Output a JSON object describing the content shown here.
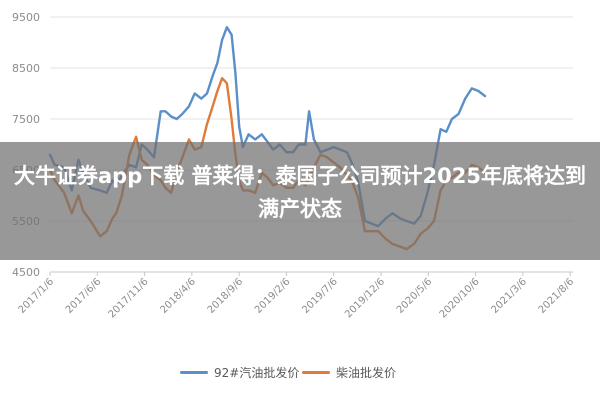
{
  "overlay": {
    "headline": "大牛证券app下载 普莱得：泰国子公司预计2025年底将达到满产状态"
  },
  "colors": {
    "gasoline": "#5b8fc9",
    "diesel": "#e07b39",
    "grid": "#e3e3e3",
    "axis_text": "#8c8c8c"
  },
  "chart_data": {
    "type": "line",
    "title": "",
    "xlabel": "",
    "ylabel": "",
    "ylim": [
      4500,
      9500
    ],
    "yticks": [
      4500,
      5500,
      6500,
      7500,
      8500,
      9500
    ],
    "x_tick_labels": [
      "2017/1/6",
      "2017/6/6",
      "2017/11/6",
      "2018/4/6",
      "2018/9/6",
      "2019/2/6",
      "2019/7/6",
      "2019/12/6",
      "2020/5/6",
      "2020/10/6",
      "2021/3/6",
      "2021/8/6"
    ],
    "x_tick_index": [
      0,
      5,
      10,
      15,
      20,
      25,
      30,
      35,
      40,
      45,
      50,
      55
    ],
    "x_index_range": [
      0,
      55.3
    ],
    "series": [
      {
        "name": "92#汽油批发价",
        "color_key": "gasoline",
        "points": [
          [
            0,
            6800
          ],
          [
            0.5,
            6600
          ],
          [
            1.5,
            6550
          ],
          [
            2.3,
            6100
          ],
          [
            3,
            6700
          ],
          [
            3.5,
            6450
          ],
          [
            4.3,
            6150
          ],
          [
            5.3,
            6100
          ],
          [
            6,
            6050
          ],
          [
            6.6,
            6300
          ],
          [
            7,
            6200
          ],
          [
            7.6,
            6400
          ],
          [
            8.4,
            6600
          ],
          [
            9.1,
            6550
          ],
          [
            9.7,
            7000
          ],
          [
            10.3,
            6900
          ],
          [
            11,
            6750
          ],
          [
            11.7,
            7650
          ],
          [
            12.2,
            7650
          ],
          [
            12.8,
            7550
          ],
          [
            13.4,
            7500
          ],
          [
            14,
            7600
          ],
          [
            14.7,
            7750
          ],
          [
            15.3,
            8000
          ],
          [
            16,
            7900
          ],
          [
            16.6,
            8000
          ],
          [
            17.2,
            8350
          ],
          [
            17.7,
            8600
          ],
          [
            18.2,
            9050
          ],
          [
            18.7,
            9300
          ],
          [
            19.2,
            9150
          ],
          [
            19.6,
            8400
          ],
          [
            20,
            7350
          ],
          [
            20.4,
            6950
          ],
          [
            21,
            7200
          ],
          [
            21.7,
            7100
          ],
          [
            22.4,
            7200
          ],
          [
            23,
            7050
          ],
          [
            23.6,
            6900
          ],
          [
            24.3,
            7000
          ],
          [
            25,
            6850
          ],
          [
            25.7,
            6850
          ],
          [
            26.3,
            7000
          ],
          [
            27,
            7000
          ],
          [
            27.4,
            7650
          ],
          [
            27.9,
            7100
          ],
          [
            28.6,
            6850
          ],
          [
            29.3,
            6900
          ],
          [
            30,
            6950
          ],
          [
            30.7,
            6900
          ],
          [
            31.4,
            6850
          ],
          [
            32,
            6600
          ],
          [
            32.6,
            6250
          ],
          [
            33.3,
            5500
          ],
          [
            34,
            5450
          ],
          [
            34.7,
            5400
          ],
          [
            35.5,
            5550
          ],
          [
            36.2,
            5650
          ],
          [
            37,
            5550
          ],
          [
            37.7,
            5500
          ],
          [
            38.5,
            5450
          ],
          [
            39.2,
            5600
          ],
          [
            39.9,
            6050
          ],
          [
            40.6,
            6600
          ],
          [
            41.3,
            7300
          ],
          [
            41.9,
            7250
          ],
          [
            42.5,
            7500
          ],
          [
            43.2,
            7600
          ],
          [
            43.9,
            7900
          ],
          [
            44.6,
            8100
          ],
          [
            45.3,
            8050
          ],
          [
            46,
            7950
          ]
        ]
      },
      {
        "name": "柴油批发价",
        "color_key": "diesel",
        "points": [
          [
            0,
            6500
          ],
          [
            0.5,
            6300
          ],
          [
            1.5,
            6050
          ],
          [
            2.3,
            5650
          ],
          [
            3,
            6000
          ],
          [
            3.5,
            5700
          ],
          [
            4.3,
            5500
          ],
          [
            5.3,
            5200
          ],
          [
            6,
            5300
          ],
          [
            6.6,
            5550
          ],
          [
            7,
            5650
          ],
          [
            7.6,
            6000
          ],
          [
            8.4,
            6800
          ],
          [
            9.1,
            7150
          ],
          [
            9.7,
            6700
          ],
          [
            10.3,
            6600
          ],
          [
            11,
            6400
          ],
          [
            11.7,
            6300
          ],
          [
            12.2,
            6150
          ],
          [
            12.8,
            6050
          ],
          [
            13.4,
            6450
          ],
          [
            14,
            6750
          ],
          [
            14.7,
            7100
          ],
          [
            15.3,
            6900
          ],
          [
            16,
            6950
          ],
          [
            16.6,
            7400
          ],
          [
            17.2,
            7750
          ],
          [
            17.7,
            8050
          ],
          [
            18.2,
            8300
          ],
          [
            18.7,
            8200
          ],
          [
            19.2,
            7500
          ],
          [
            19.6,
            6800
          ],
          [
            20,
            6300
          ],
          [
            20.4,
            6100
          ],
          [
            21,
            6100
          ],
          [
            21.7,
            6050
          ],
          [
            22.4,
            6450
          ],
          [
            23,
            6350
          ],
          [
            23.6,
            6200
          ],
          [
            24.3,
            6250
          ],
          [
            25,
            6150
          ],
          [
            25.7,
            6150
          ],
          [
            26.3,
            6300
          ],
          [
            27,
            6200
          ],
          [
            27.4,
            6350
          ],
          [
            27.9,
            6550
          ],
          [
            28.6,
            6800
          ],
          [
            29.3,
            6750
          ],
          [
            30,
            6650
          ],
          [
            30.7,
            6550
          ],
          [
            31.4,
            6400
          ],
          [
            32,
            6250
          ],
          [
            32.6,
            5950
          ],
          [
            33.3,
            5300
          ],
          [
            34,
            5300
          ],
          [
            34.7,
            5300
          ],
          [
            35.5,
            5150
          ],
          [
            36.2,
            5050
          ],
          [
            37,
            5000
          ],
          [
            37.7,
            4950
          ],
          [
            38.5,
            5050
          ],
          [
            39.2,
            5250
          ],
          [
            39.9,
            5350
          ],
          [
            40.6,
            5500
          ],
          [
            41.3,
            6100
          ],
          [
            41.9,
            6300
          ],
          [
            42.5,
            6350
          ],
          [
            43.2,
            6450
          ],
          [
            43.9,
            6450
          ],
          [
            44.6,
            6600
          ],
          [
            45.3,
            6550
          ],
          [
            46,
            6450
          ]
        ]
      }
    ],
    "grid": true,
    "legend_position": "bottom"
  }
}
